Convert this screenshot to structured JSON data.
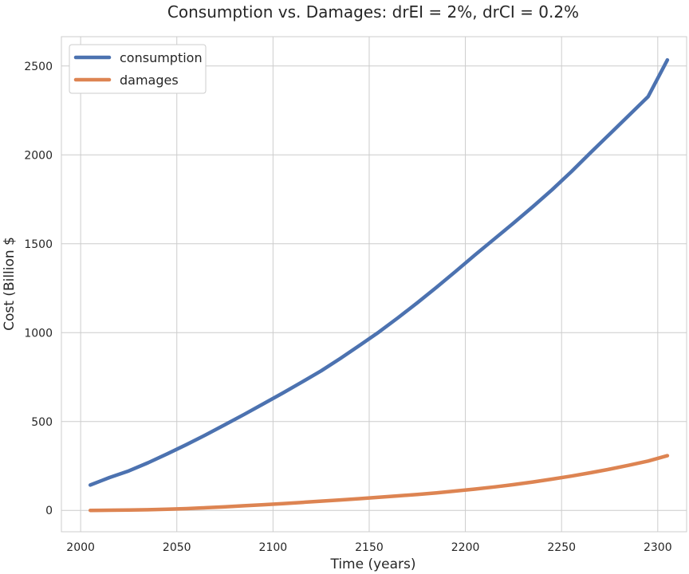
{
  "chart_data": {
    "type": "line",
    "title": "Consumption vs. Damages: drEI = 2%, drCI = 0.2%",
    "xlabel": "Time (years)",
    "ylabel": "Cost (Billion $",
    "xlim": [
      1990,
      2315
    ],
    "ylim": [
      -120,
      2665
    ],
    "xticks": [
      2000,
      2050,
      2100,
      2150,
      2200,
      2250,
      2300
    ],
    "yticks": [
      0,
      500,
      1000,
      1500,
      2000,
      2500
    ],
    "grid": true,
    "legend_position": "top-left",
    "series": [
      {
        "name": "consumption",
        "color": "#4c72b0",
        "x": [
          2005,
          2015,
          2025,
          2035,
          2045,
          2055,
          2065,
          2075,
          2085,
          2095,
          2105,
          2115,
          2125,
          2135,
          2145,
          2155,
          2165,
          2175,
          2185,
          2195,
          2205,
          2215,
          2225,
          2235,
          2245,
          2255,
          2265,
          2275,
          2285,
          2295,
          2305
        ],
        "y": [
          143,
          185,
          222,
          268,
          318,
          370,
          425,
          482,
          540,
          600,
          660,
          722,
          785,
          855,
          928,
          1003,
          1084,
          1168,
          1255,
          1345,
          1437,
          1527,
          1616,
          1708,
          1803,
          1905,
          2012,
          2117,
          2222,
          2328,
          2534
        ]
      },
      {
        "name": "damages",
        "color": "#dd8452",
        "x": [
          2005,
          2015,
          2025,
          2035,
          2045,
          2055,
          2065,
          2075,
          2085,
          2095,
          2105,
          2115,
          2125,
          2135,
          2145,
          2155,
          2165,
          2175,
          2185,
          2195,
          2205,
          2215,
          2225,
          2235,
          2245,
          2255,
          2265,
          2275,
          2285,
          2295,
          2305
        ],
        "y": [
          0,
          1,
          2,
          4,
          7,
          10,
          15,
          20,
          26,
          32,
          38,
          45,
          52,
          59,
          66,
          74,
          82,
          90,
          99,
          109,
          120,
          132,
          145,
          160,
          176,
          193,
          212,
          232,
          254,
          278,
          308
        ]
      }
    ]
  }
}
